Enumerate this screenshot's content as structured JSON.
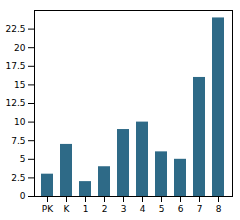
{
  "chart_data": {
    "type": "bar",
    "categories": [
      "PK",
      "K",
      "1",
      "2",
      "3",
      "4",
      "5",
      "6",
      "7",
      "8"
    ],
    "values": [
      3,
      7,
      2,
      4,
      9,
      10,
      6,
      5,
      16,
      24
    ],
    "color": "#2e6a87",
    "ylim": [
      0,
      25
    ],
    "yticks": [
      0,
      2.5,
      5,
      7.5,
      10,
      12.5,
      15,
      17.5,
      20,
      22.5
    ],
    "grid": false
  }
}
